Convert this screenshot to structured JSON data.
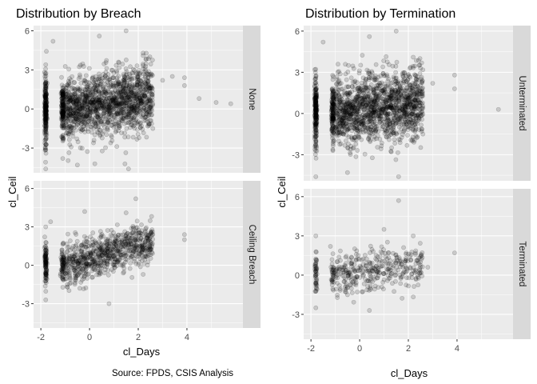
{
  "caption": "Source: FPDS, CSIS Analysis",
  "chart_data": [
    {
      "type": "scatter",
      "title": "Distribution by Breach",
      "xlabel": "cl_Days",
      "ylabel": "cl_Ceil",
      "xlim": [
        -2.3,
        6.3
      ],
      "ylim": [
        -4.9,
        6.6
      ],
      "xticks": [
        -2,
        0,
        2,
        4
      ],
      "yticks": [
        -3,
        0,
        3,
        6
      ],
      "facets": [
        {
          "label": "None",
          "ylim": [
            -4.9,
            6.4
          ],
          "yticks": [
            -3,
            0,
            3,
            6
          ],
          "density": "very high",
          "sample_points": [
            [
              -1.8,
              0.0
            ],
            [
              -1.8,
              3.4
            ],
            [
              -1.8,
              -4.6
            ],
            [
              -1.5,
              5.2
            ],
            [
              -1.1,
              -3.8
            ],
            [
              -0.5,
              -4.3
            ],
            [
              0.4,
              5.6
            ],
            [
              1.5,
              6.0
            ],
            [
              1.6,
              -4.6
            ],
            [
              2.2,
              4.1
            ],
            [
              2.6,
              -1.5
            ],
            [
              3.0,
              2.2
            ],
            [
              3.4,
              2.5
            ],
            [
              3.9,
              1.8
            ],
            [
              3.9,
              2.4
            ],
            [
              4.5,
              0.8
            ],
            [
              5.2,
              0.5
            ],
            [
              5.8,
              0.4
            ]
          ]
        },
        {
          "label": "Ceiling Breach",
          "ylim": [
            -4.9,
            6.6
          ],
          "yticks": [
            -3,
            0,
            3,
            6
          ],
          "density": "high",
          "sample_points": [
            [
              -1.8,
              0.5
            ],
            [
              -1.8,
              3.0
            ],
            [
              -1.8,
              -2.7
            ],
            [
              -1.6,
              3.4
            ],
            [
              -1.2,
              -0.8
            ],
            [
              -0.4,
              -1.8
            ],
            [
              -0.2,
              4.2
            ],
            [
              0.8,
              -3.0
            ],
            [
              1.5,
              4.1
            ],
            [
              1.9,
              5.2
            ],
            [
              2.4,
              1.5
            ],
            [
              2.6,
              2.4
            ],
            [
              3.9,
              2.0
            ],
            [
              3.9,
              2.4
            ]
          ]
        }
      ]
    },
    {
      "type": "scatter",
      "title": "Distribution by Termination",
      "xlabel": "cl_Days",
      "ylabel": "cl_Ceil",
      "xlim": [
        -2.3,
        6.3
      ],
      "ylim": [
        -4.9,
        6.6
      ],
      "xticks": [
        -2,
        0,
        2,
        4
      ],
      "yticks": [
        -3,
        0,
        3,
        6
      ],
      "facets": [
        {
          "label": "Unterminated",
          "ylim": [
            -4.9,
            6.4
          ],
          "yticks": [
            -3,
            0,
            3,
            6
          ],
          "density": "very high",
          "sample_points": [
            [
              -1.8,
              0.0
            ],
            [
              -1.8,
              -4.6
            ],
            [
              -1.5,
              5.2
            ],
            [
              -0.5,
              -4.3
            ],
            [
              0.4,
              5.6
            ],
            [
              1.5,
              6.0
            ],
            [
              1.6,
              -4.6
            ],
            [
              2.2,
              4.1
            ],
            [
              2.6,
              -1.5
            ],
            [
              3.0,
              2.2
            ],
            [
              3.9,
              1.8
            ],
            [
              3.9,
              2.8
            ],
            [
              5.7,
              0.3
            ]
          ]
        },
        {
          "label": "Terminated",
          "ylim": [
            -4.9,
            6.6
          ],
          "yticks": [
            -3,
            0,
            3,
            6
          ],
          "density": "moderate",
          "sample_points": [
            [
              -1.8,
              0.0
            ],
            [
              -1.8,
              3.0
            ],
            [
              -1.8,
              -2.5
            ],
            [
              -1.2,
              2.2
            ],
            [
              -0.5,
              -1.5
            ],
            [
              0.4,
              -2.7
            ],
            [
              1.0,
              3.5
            ],
            [
              1.6,
              5.7
            ],
            [
              2.2,
              3.0
            ],
            [
              2.5,
              1.0
            ],
            [
              2.8,
              0.6
            ],
            [
              3.9,
              1.7
            ]
          ]
        }
      ]
    }
  ]
}
